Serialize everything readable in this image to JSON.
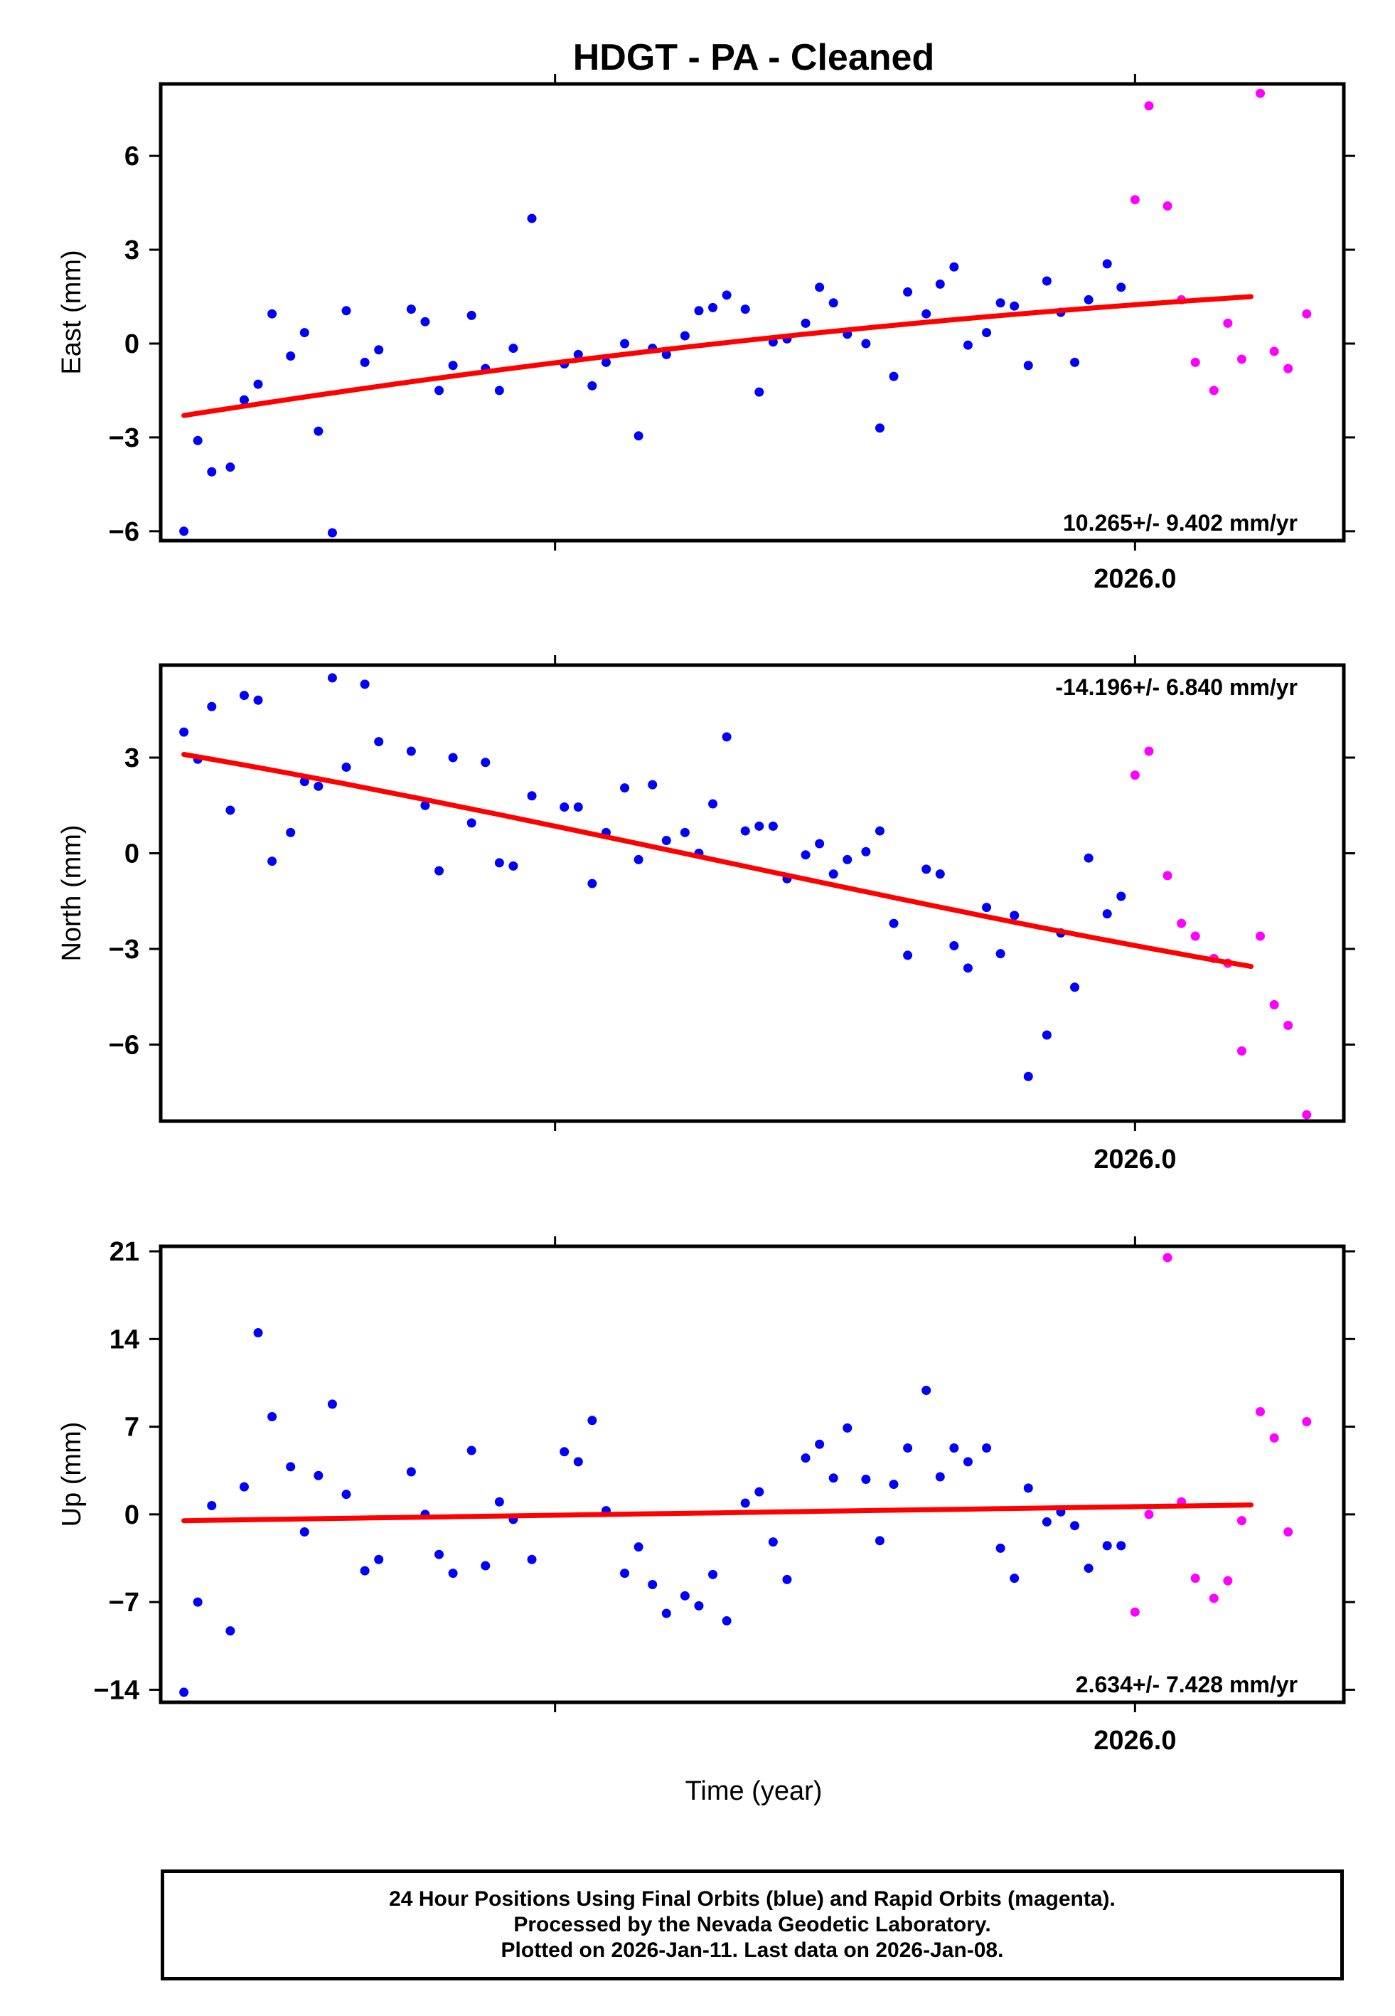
{
  "page_title": "HDGT  - PA - Cleaned",
  "xlabel": "Time (year)",
  "x_tick_label": "2026.0",
  "colors": {
    "final": "#0000ff",
    "rapid": "#ff00ff",
    "fit": "#ff0000"
  },
  "caption": {
    "line1": "24 Hour Positions Using Final Orbits (blue) and Rapid Orbits (magenta).",
    "line2": "Processed by the Nevada Geodetic Laboratory.",
    "line3": "Plotted on 2026-Jan-11. Last data on 2026-Jan-08."
  },
  "chart_data": [
    {
      "type": "scatter",
      "title": "HDGT  - PA - Cleaned",
      "ylabel": "East (mm)",
      "xlabel": "",
      "x_tick_labels": [
        "2026.0"
      ],
      "ylim": [
        -6.3,
        8.3
      ],
      "yticks": [
        -6,
        -3,
        0,
        3,
        6
      ],
      "xlim": [
        2025.79,
        2026.045
      ],
      "rate_text": "10.265+/- 9.402 mm/yr",
      "fit": {
        "x": [
          2025.795,
          2026.025
        ],
        "y_start": -2.3,
        "y_end": 1.5
      },
      "series": [
        {
          "name": "Final Orbits",
          "color": "#0000ff",
          "points": [
            [
              2025.795,
              -6.0
            ],
            [
              2025.798,
              -3.1
            ],
            [
              2025.801,
              -4.1
            ],
            [
              2025.805,
              -3.95
            ],
            [
              2025.808,
              -1.8
            ],
            [
              2025.811,
              -1.3
            ],
            [
              2025.814,
              0.95
            ],
            [
              2025.818,
              -0.4
            ],
            [
              2025.821,
              0.35
            ],
            [
              2025.824,
              -2.8
            ],
            [
              2025.827,
              -6.05
            ],
            [
              2025.83,
              1.05
            ],
            [
              2025.834,
              -0.6
            ],
            [
              2025.837,
              -0.2
            ],
            [
              2025.844,
              1.1
            ],
            [
              2025.847,
              0.7
            ],
            [
              2025.85,
              -1.5
            ],
            [
              2025.853,
              -0.7
            ],
            [
              2025.857,
              0.9
            ],
            [
              2025.86,
              -0.8
            ],
            [
              2025.863,
              -1.5
            ],
            [
              2025.866,
              -0.15
            ],
            [
              2025.87,
              4.0
            ],
            [
              2025.877,
              -0.65
            ],
            [
              2025.88,
              -0.35
            ],
            [
              2025.883,
              -1.35
            ],
            [
              2025.886,
              -0.6
            ],
            [
              2025.89,
              0.0
            ],
            [
              2025.893,
              -2.95
            ],
            [
              2025.896,
              -0.15
            ],
            [
              2025.899,
              -0.35
            ],
            [
              2025.903,
              0.25
            ],
            [
              2025.906,
              1.05
            ],
            [
              2025.909,
              1.15
            ],
            [
              2025.912,
              1.55
            ],
            [
              2025.916,
              1.1
            ],
            [
              2025.919,
              -1.55
            ],
            [
              2025.922,
              0.05
            ],
            [
              2025.925,
              0.15
            ],
            [
              2025.929,
              0.65
            ],
            [
              2025.932,
              1.8
            ],
            [
              2025.935,
              1.3
            ],
            [
              2025.938,
              0.3
            ],
            [
              2025.942,
              0.0
            ],
            [
              2025.945,
              -2.7
            ],
            [
              2025.948,
              -1.05
            ],
            [
              2025.951,
              1.65
            ],
            [
              2025.955,
              0.95
            ],
            [
              2025.958,
              1.9
            ],
            [
              2025.961,
              2.45
            ],
            [
              2025.964,
              -0.05
            ],
            [
              2025.968,
              0.35
            ],
            [
              2025.971,
              1.3
            ],
            [
              2025.974,
              1.2
            ],
            [
              2025.977,
              -0.7
            ],
            [
              2025.981,
              2.0
            ],
            [
              2025.984,
              1.0
            ],
            [
              2025.987,
              -0.6
            ],
            [
              2025.99,
              1.4
            ],
            [
              2025.994,
              2.55
            ],
            [
              2025.997,
              1.8
            ]
          ]
        },
        {
          "name": "Rapid Orbits",
          "color": "#ff00ff",
          "points": [
            [
              2026.0,
              4.6
            ],
            [
              2026.003,
              7.6
            ],
            [
              2026.007,
              4.4
            ],
            [
              2026.01,
              1.4
            ],
            [
              2026.013,
              -0.6
            ],
            [
              2026.017,
              -1.5
            ],
            [
              2026.02,
              0.65
            ],
            [
              2026.023,
              -0.5
            ],
            [
              2026.027,
              8.0
            ],
            [
              2026.03,
              -0.25
            ],
            [
              2026.033,
              -0.8
            ],
            [
              2026.037,
              0.95
            ]
          ]
        }
      ]
    },
    {
      "type": "scatter",
      "title": "",
      "ylabel": "North (mm)",
      "xlabel": "",
      "x_tick_labels": [
        "2026.0"
      ],
      "ylim": [
        -8.4,
        5.9
      ],
      "yticks": [
        -6,
        -3,
        0,
        3
      ],
      "xlim": [
        2025.79,
        2026.045
      ],
      "rate_text": "-14.196+/- 6.840 mm/yr",
      "fit": {
        "x": [
          2025.795,
          2026.025
        ],
        "y_start": 3.1,
        "y_end": -3.55
      },
      "series": [
        {
          "name": "Final Orbits",
          "color": "#0000ff",
          "points": [
            [
              2025.795,
              3.8
            ],
            [
              2025.798,
              2.95
            ],
            [
              2025.801,
              4.6
            ],
            [
              2025.805,
              1.35
            ],
            [
              2025.808,
              4.95
            ],
            [
              2025.811,
              4.8
            ],
            [
              2025.814,
              -0.25
            ],
            [
              2025.818,
              0.65
            ],
            [
              2025.821,
              2.25
            ],
            [
              2025.824,
              2.1
            ],
            [
              2025.827,
              5.5
            ],
            [
              2025.83,
              2.7
            ],
            [
              2025.834,
              5.3
            ],
            [
              2025.837,
              3.5
            ],
            [
              2025.844,
              3.2
            ],
            [
              2025.847,
              1.5
            ],
            [
              2025.85,
              -0.55
            ],
            [
              2025.853,
              3.0
            ],
            [
              2025.857,
              0.95
            ],
            [
              2025.86,
              2.85
            ],
            [
              2025.863,
              -0.3
            ],
            [
              2025.866,
              -0.4
            ],
            [
              2025.87,
              1.8
            ],
            [
              2025.877,
              1.45
            ],
            [
              2025.88,
              1.45
            ],
            [
              2025.883,
              -0.95
            ],
            [
              2025.886,
              0.65
            ],
            [
              2025.89,
              2.05
            ],
            [
              2025.893,
              -0.2
            ],
            [
              2025.896,
              2.15
            ],
            [
              2025.899,
              0.4
            ],
            [
              2025.903,
              0.65
            ],
            [
              2025.906,
              0.0
            ],
            [
              2025.909,
              1.55
            ],
            [
              2025.912,
              3.65
            ],
            [
              2025.916,
              0.7
            ],
            [
              2025.919,
              0.85
            ],
            [
              2025.922,
              0.85
            ],
            [
              2025.925,
              -0.8
            ],
            [
              2025.929,
              -0.05
            ],
            [
              2025.932,
              0.3
            ],
            [
              2025.935,
              -0.65
            ],
            [
              2025.938,
              -0.2
            ],
            [
              2025.942,
              0.05
            ],
            [
              2025.945,
              0.7
            ],
            [
              2025.948,
              -2.2
            ],
            [
              2025.951,
              -3.2
            ],
            [
              2025.955,
              -0.5
            ],
            [
              2025.958,
              -0.65
            ],
            [
              2025.961,
              -2.9
            ],
            [
              2025.964,
              -3.6
            ],
            [
              2025.968,
              -1.7
            ],
            [
              2025.971,
              -3.15
            ],
            [
              2025.974,
              -1.95
            ],
            [
              2025.977,
              -7.0
            ],
            [
              2025.981,
              -5.7
            ],
            [
              2025.984,
              -2.5
            ],
            [
              2025.987,
              -4.2
            ],
            [
              2025.99,
              -0.15
            ],
            [
              2025.994,
              -1.9
            ],
            [
              2025.997,
              -1.35
            ]
          ]
        },
        {
          "name": "Rapid Orbits",
          "color": "#ff00ff",
          "points": [
            [
              2026.0,
              2.45
            ],
            [
              2026.003,
              3.2
            ],
            [
              2026.007,
              -0.7
            ],
            [
              2026.01,
              -2.2
            ],
            [
              2026.013,
              -2.6
            ],
            [
              2026.017,
              -3.3
            ],
            [
              2026.02,
              -3.45
            ],
            [
              2026.023,
              -6.2
            ],
            [
              2026.027,
              -2.6
            ],
            [
              2026.03,
              -4.75
            ],
            [
              2026.033,
              -5.4
            ],
            [
              2026.037,
              -8.2
            ]
          ]
        }
      ]
    },
    {
      "type": "scatter",
      "title": "",
      "ylabel": "Up (mm)",
      "xlabel": "Time (year)",
      "x_tick_labels": [
        "2026.0"
      ],
      "ylim": [
        -15.0,
        21.4
      ],
      "yticks": [
        -14,
        -7,
        0,
        7,
        14,
        21
      ],
      "xlim": [
        2025.79,
        2026.045
      ],
      "rate_text": "2.634+/- 7.428 mm/yr",
      "fit": {
        "x": [
          2025.795,
          2026.025
        ],
        "y_start": -0.5,
        "y_end": 0.75
      },
      "series": [
        {
          "name": "Final Orbits",
          "color": "#0000ff",
          "points": [
            [
              2025.795,
              -14.2
            ],
            [
              2025.798,
              -7.0
            ],
            [
              2025.801,
              0.7
            ],
            [
              2025.805,
              -9.3
            ],
            [
              2025.808,
              2.2
            ],
            [
              2025.811,
              14.5
            ],
            [
              2025.814,
              7.8
            ],
            [
              2025.818,
              3.8
            ],
            [
              2025.821,
              -1.4
            ],
            [
              2025.824,
              3.1
            ],
            [
              2025.827,
              8.8
            ],
            [
              2025.83,
              1.6
            ],
            [
              2025.834,
              -4.5
            ],
            [
              2025.837,
              -3.6
            ],
            [
              2025.844,
              3.4
            ],
            [
              2025.847,
              0.0
            ],
            [
              2025.85,
              -3.2
            ],
            [
              2025.853,
              -4.7
            ],
            [
              2025.857,
              5.1
            ],
            [
              2025.86,
              -4.1
            ],
            [
              2025.863,
              1.0
            ],
            [
              2025.866,
              -0.4
            ],
            [
              2025.87,
              -3.6
            ],
            [
              2025.877,
              5.0
            ],
            [
              2025.88,
              4.2
            ],
            [
              2025.883,
              7.5
            ],
            [
              2025.886,
              0.3
            ],
            [
              2025.89,
              -4.7
            ],
            [
              2025.893,
              -2.6
            ],
            [
              2025.896,
              -5.6
            ],
            [
              2025.899,
              -7.9
            ],
            [
              2025.903,
              -6.5
            ],
            [
              2025.906,
              -7.3
            ],
            [
              2025.909,
              -4.8
            ],
            [
              2025.912,
              -8.5
            ],
            [
              2025.916,
              0.9
            ],
            [
              2025.919,
              1.8
            ],
            [
              2025.922,
              -2.2
            ],
            [
              2025.925,
              -5.2
            ],
            [
              2025.929,
              4.5
            ],
            [
              2025.932,
              5.6
            ],
            [
              2025.935,
              2.9
            ],
            [
              2025.938,
              6.9
            ],
            [
              2025.942,
              2.8
            ],
            [
              2025.945,
              -2.1
            ],
            [
              2025.948,
              2.4
            ],
            [
              2025.951,
              5.3
            ],
            [
              2025.955,
              9.9
            ],
            [
              2025.958,
              3.0
            ],
            [
              2025.961,
              5.3
            ],
            [
              2025.964,
              4.2
            ],
            [
              2025.968,
              5.3
            ],
            [
              2025.971,
              -2.7
            ],
            [
              2025.974,
              -5.1
            ],
            [
              2025.977,
              2.1
            ],
            [
              2025.981,
              -0.6
            ],
            [
              2025.984,
              0.2
            ],
            [
              2025.987,
              -0.9
            ],
            [
              2025.99,
              -4.3
            ],
            [
              2025.994,
              -2.5
            ],
            [
              2025.997,
              -2.5
            ]
          ]
        },
        {
          "name": "Rapid Orbits",
          "color": "#ff00ff",
          "points": [
            [
              2026.0,
              -7.8
            ],
            [
              2026.003,
              0.0
            ],
            [
              2026.007,
              20.5
            ],
            [
              2026.01,
              1.0
            ],
            [
              2026.013,
              -5.1
            ],
            [
              2026.017,
              -6.7
            ],
            [
              2026.02,
              -5.3
            ],
            [
              2026.023,
              -0.5
            ],
            [
              2026.027,
              8.2
            ],
            [
              2026.03,
              6.1
            ],
            [
              2026.033,
              -1.4
            ],
            [
              2026.037,
              7.4
            ]
          ]
        }
      ]
    }
  ]
}
